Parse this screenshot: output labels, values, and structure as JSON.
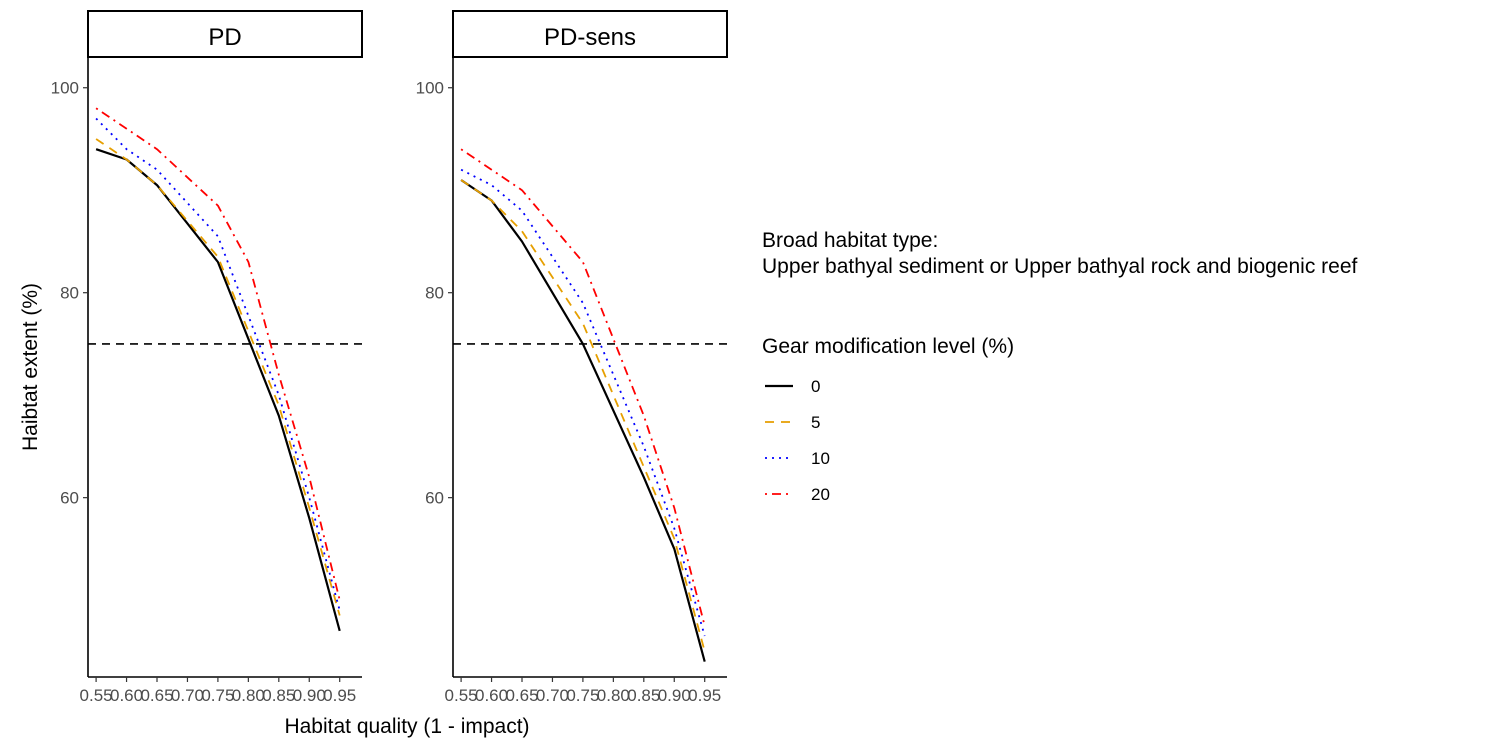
{
  "chart_data": {
    "type": "line",
    "facets": [
      "PD",
      "PD-sens"
    ],
    "x": [
      0.55,
      0.6,
      0.65,
      0.7,
      0.75,
      0.8,
      0.85,
      0.9,
      0.95
    ],
    "x_tick_labels": [
      "0.55",
      "0.60",
      "0.65",
      "0.70",
      "0.75",
      "0.80",
      "0.85",
      "0.90",
      "0.95"
    ],
    "xlabel": "Habitat quality (1 - impact)",
    "ylabel": "Haibtat extent (%)",
    "y_ticks": [
      60,
      80,
      100
    ],
    "ylim": [
      42.5,
      103
    ],
    "reference_line": {
      "y": 75,
      "style": "dashed"
    },
    "legend": {
      "placement": "right",
      "habitat_title_line1": "Broad habitat type:",
      "habitat_title_line2": "Upper bathyal sediment or Upper bathyal rock and biogenic reef",
      "gear_title": "Gear modification level (%)"
    },
    "series": [
      {
        "name": "0",
        "color": "#000000",
        "dash": "solid",
        "values": {
          "PD": [
            94,
            93,
            90.5,
            null,
            83,
            null,
            68,
            58,
            47
          ],
          "PD-sens": [
            91,
            89,
            85,
            null,
            75,
            null,
            62,
            55,
            44
          ]
        }
      },
      {
        "name": "5",
        "color": "#E69F00",
        "dash": "dashed",
        "values": {
          "PD": [
            95,
            93,
            90.5,
            null,
            83.5,
            null,
            69,
            59,
            48.5
          ],
          "PD-sens": [
            91,
            89,
            86,
            null,
            77,
            null,
            63,
            56,
            45
          ]
        }
      },
      {
        "name": "10",
        "color": "#0000FF",
        "dash": "dotted",
        "values": {
          "PD": [
            97,
            94,
            92,
            null,
            85.5,
            null,
            70,
            60,
            49
          ],
          "PD-sens": [
            92,
            90.5,
            88,
            null,
            79,
            null,
            65,
            57,
            46.5
          ]
        }
      },
      {
        "name": "20",
        "color": "#FF0000",
        "dash": "dotdash",
        "values": {
          "PD": [
            98,
            96,
            94,
            null,
            88.5,
            83,
            72,
            62,
            50
          ],
          "PD-sens": [
            94,
            92,
            90,
            null,
            83,
            null,
            68,
            59,
            47.5
          ]
        }
      }
    ]
  }
}
